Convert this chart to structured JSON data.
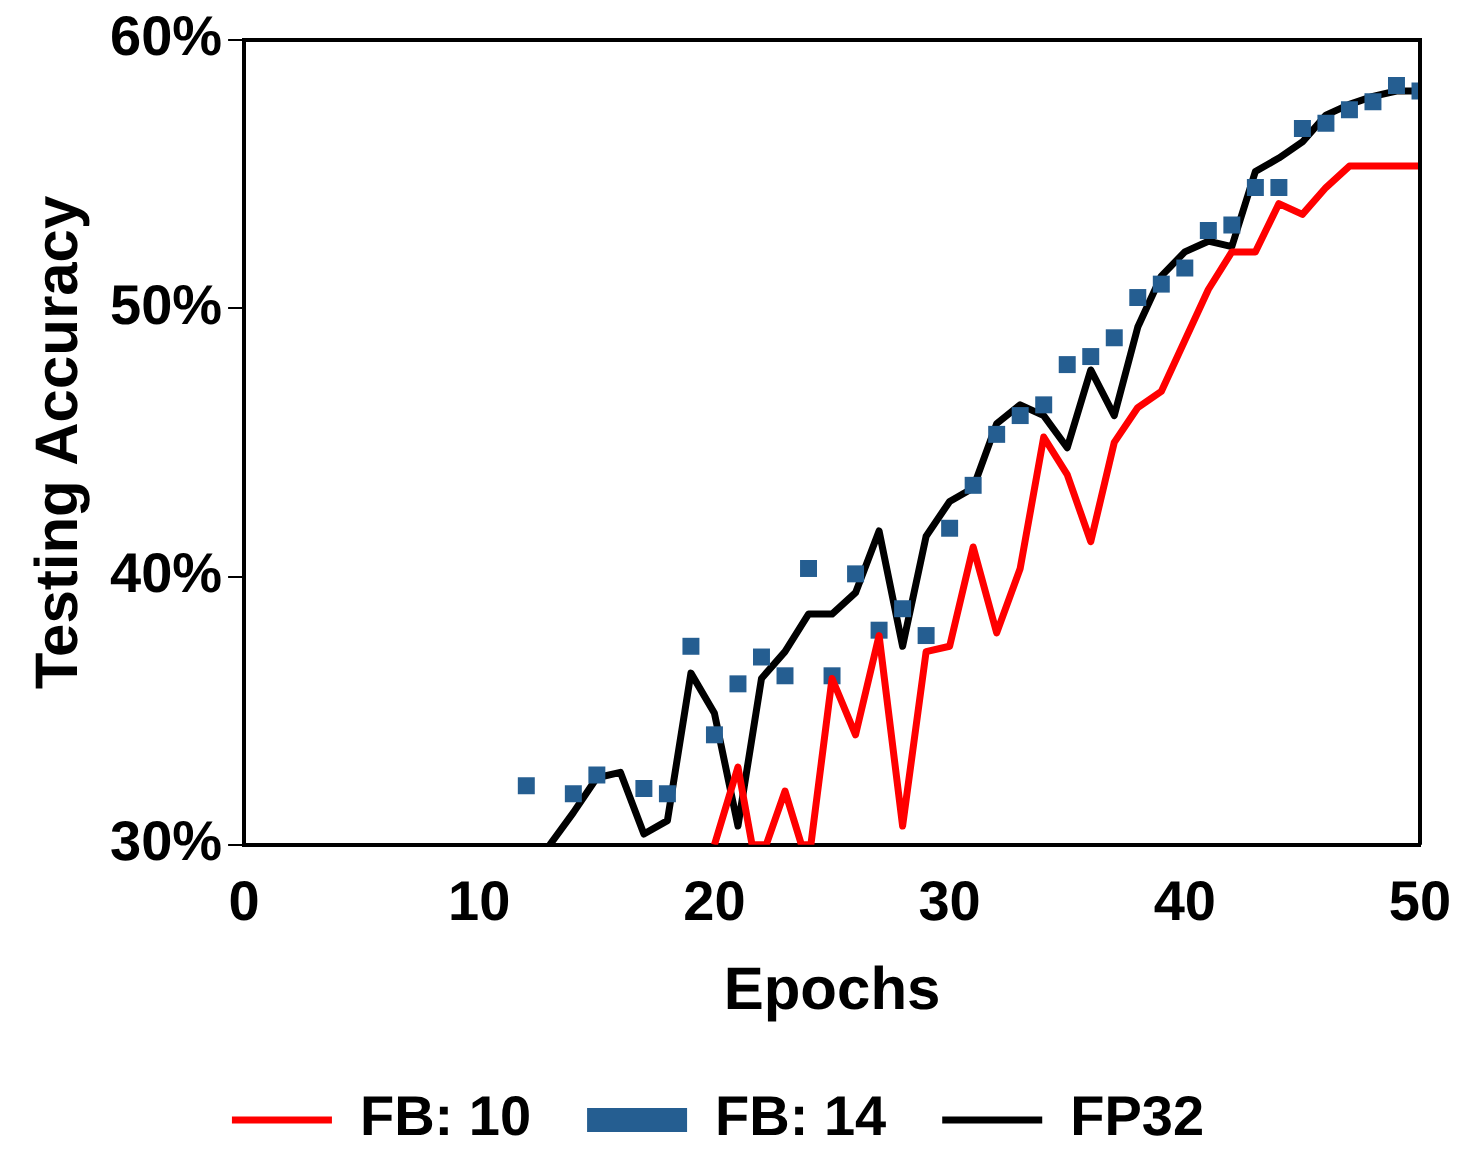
{
  "chart_data": {
    "type": "line",
    "xlabel": "Epochs",
    "ylabel": "Testing Accuracy",
    "xlim": [
      0,
      50
    ],
    "xticks": [
      0,
      10,
      20,
      30,
      40,
      50
    ],
    "ylim": [
      30,
      60
    ],
    "yticks": [
      {
        "value": 30,
        "label": "30%"
      },
      {
        "value": 40,
        "label": "40%"
      },
      {
        "value": 50,
        "label": "50%"
      },
      {
        "value": 60,
        "label": "60%"
      }
    ],
    "grid": false,
    "legend": "bottom",
    "series": [
      {
        "name": "FB: 10",
        "color": "#ff0000",
        "marker": "none",
        "line_style": "solid",
        "x": [
          20,
          21,
          21.6,
          22.2,
          23,
          23.7,
          24.1,
          25,
          26,
          27,
          28,
          29,
          30,
          31,
          32,
          33,
          34,
          35,
          36,
          37,
          38,
          39,
          40,
          41,
          42,
          43,
          44,
          45,
          46,
          47,
          48,
          49,
          50
        ],
        "values": [
          30.0,
          32.9,
          30.0,
          30.0,
          32.0,
          30.0,
          30.0,
          36.2,
          34.1,
          37.8,
          30.7,
          37.2,
          37.4,
          41.1,
          37.9,
          40.3,
          45.2,
          43.8,
          41.3,
          45.0,
          46.3,
          46.9,
          48.8,
          50.7,
          52.1,
          52.1,
          53.9,
          53.5,
          54.5,
          55.3,
          55.3,
          55.3,
          55.3
        ]
      },
      {
        "name": "FB: 14",
        "type": "scatter",
        "color": "#255e91",
        "marker": "square",
        "x": [
          12,
          14,
          15,
          17,
          18,
          19,
          20,
          21,
          22,
          23,
          24,
          25,
          26,
          27,
          28,
          29,
          30,
          31,
          32,
          33,
          34,
          35,
          36,
          37,
          38,
          39,
          40,
          41,
          42,
          43,
          44,
          45,
          46,
          47,
          48,
          49,
          50
        ],
        "values": [
          32.2,
          31.9,
          32.6,
          32.1,
          31.9,
          37.4,
          34.1,
          36.0,
          37.0,
          36.3,
          40.3,
          36.3,
          40.1,
          38.0,
          38.8,
          37.8,
          41.8,
          43.4,
          45.3,
          46.0,
          46.4,
          47.9,
          48.2,
          48.9,
          50.4,
          50.9,
          51.5,
          52.9,
          53.1,
          54.5,
          54.5,
          56.7,
          56.9,
          57.4,
          57.7,
          58.3,
          58.1
        ]
      },
      {
        "name": "FP32",
        "color": "#000000",
        "marker": "none",
        "line_style": "solid",
        "x": [
          13,
          14,
          15,
          16,
          17,
          18,
          19,
          20,
          21,
          22,
          23,
          24,
          25,
          26,
          27,
          28,
          29,
          30,
          31,
          32,
          33,
          34,
          35,
          36,
          37,
          38,
          39,
          40,
          41,
          42,
          43,
          44,
          45,
          46,
          47,
          48,
          49,
          50
        ],
        "values": [
          30.0,
          31.2,
          32.5,
          32.7,
          30.4,
          30.9,
          36.4,
          34.9,
          30.7,
          36.2,
          37.2,
          38.6,
          38.6,
          39.4,
          41.7,
          37.4,
          41.5,
          42.8,
          43.3,
          45.7,
          46.4,
          46.0,
          44.8,
          47.7,
          46.0,
          49.3,
          51.2,
          52.1,
          52.5,
          52.3,
          55.1,
          55.6,
          56.2,
          57.2,
          57.6,
          57.9,
          58.1,
          58.1
        ]
      }
    ]
  }
}
